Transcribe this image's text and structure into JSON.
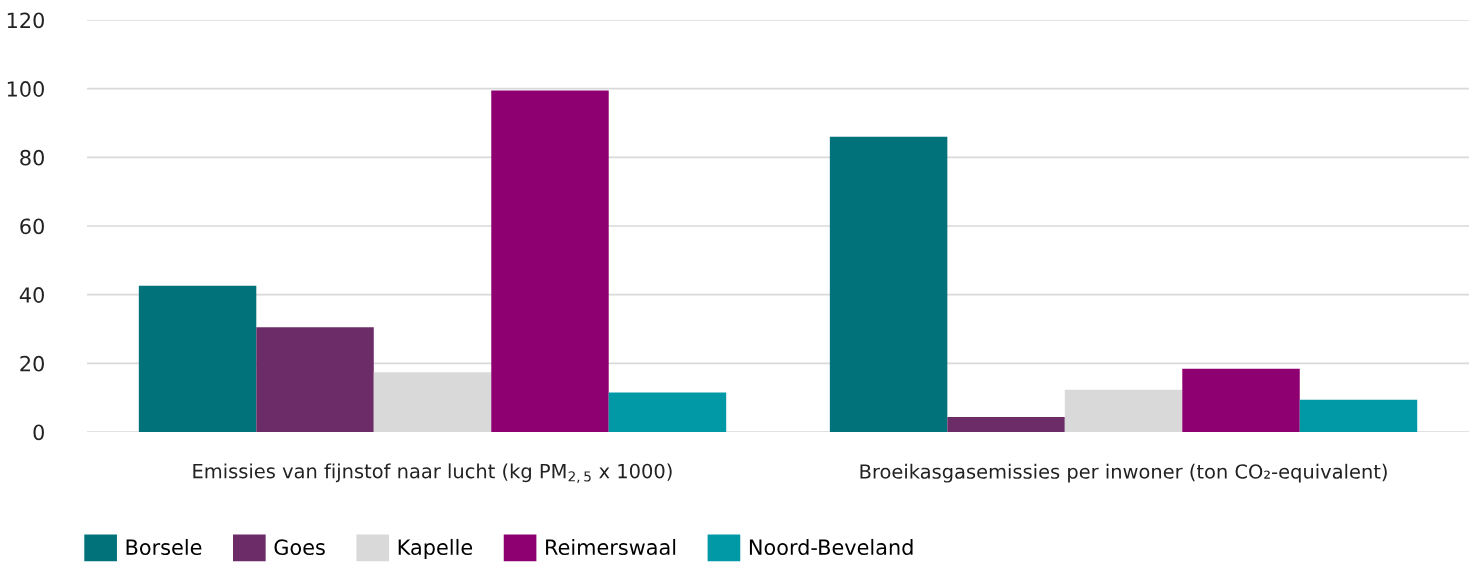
{
  "chart_data": {
    "type": "bar",
    "categories": [
      "Emissies van fijnstof naar lucht (kg PM$_{2,5}$ x 1000)",
      "Broeikasgasemissies per inwoner (ton CO₂-equivalent)"
    ],
    "series": [
      {
        "name": "Borsele",
        "color": "#02727a",
        "values": [
          42.6,
          86.0
        ]
      },
      {
        "name": "Goes",
        "color": "#6c2c68",
        "values": [
          30.5,
          4.4
        ]
      },
      {
        "name": "Kapelle",
        "color": "#d9d9d9",
        "values": [
          17.4,
          12.3
        ]
      },
      {
        "name": "Reimerswaal",
        "color": "#8e0072",
        "values": [
          99.5,
          18.4
        ]
      },
      {
        "name": "Noord-Beveland",
        "color": "#0099a5",
        "values": [
          11.5,
          9.4
        ]
      }
    ],
    "ylim": [
      0,
      120
    ],
    "yticks": [
      0,
      20,
      40,
      60,
      80,
      100,
      120
    ],
    "grid": "y",
    "legend": "bottom left"
  }
}
